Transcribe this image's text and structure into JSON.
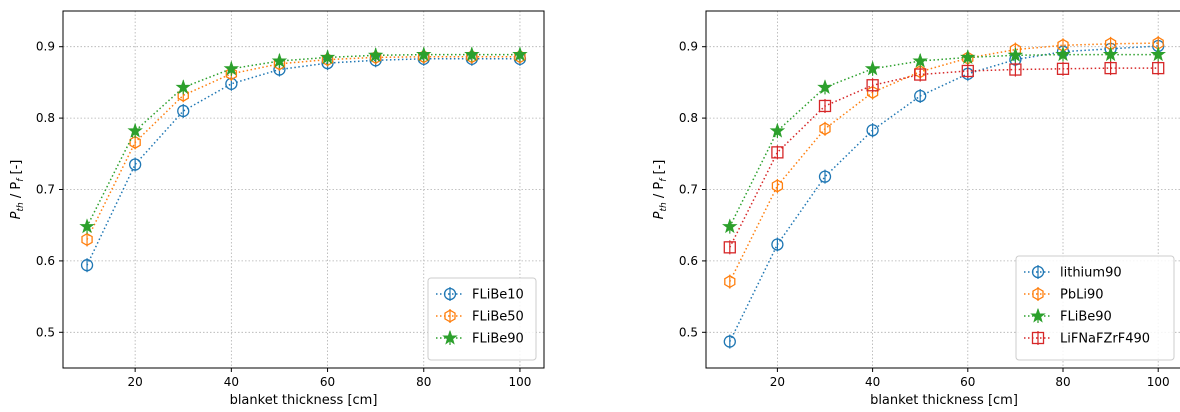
{
  "chart_data": [
    {
      "type": "line",
      "xlabel": "blanket thickness [cm]",
      "ylabel_main": "P",
      "ylabel_sub1": "th",
      "ylabel_mid": " / P",
      "ylabel_sub2": "f",
      "ylabel_tail": " [-]",
      "xlim": [
        5,
        105
      ],
      "ylim": [
        0.45,
        0.95
      ],
      "xticks": [
        20,
        40,
        60,
        80,
        100
      ],
      "xtick_labels": [
        "20",
        "40",
        "60",
        "80",
        "100"
      ],
      "yticks": [
        0.5,
        0.6,
        0.7,
        0.8,
        0.9
      ],
      "ytick_labels": [
        "0.5",
        "0.6",
        "0.7",
        "0.8",
        "0.9"
      ],
      "grid": true,
      "legend_position": "lower-right",
      "x": [
        10,
        20,
        30,
        40,
        50,
        60,
        70,
        80,
        90,
        100
      ],
      "series": [
        {
          "name": "FLiBe10",
          "color": "#1f77b4",
          "marker": "circle",
          "values": [
            0.594,
            0.735,
            0.81,
            0.848,
            0.868,
            0.877,
            0.881,
            0.883,
            0.883,
            0.883
          ]
        },
        {
          "name": "FLiBe50",
          "color": "#ff7f0e",
          "marker": "hexagon",
          "values": [
            0.63,
            0.766,
            0.832,
            0.862,
            0.876,
            0.882,
            0.885,
            0.886,
            0.886,
            0.886
          ]
        },
        {
          "name": "FLiBe90",
          "color": "#2ca02c",
          "marker": "star",
          "values": [
            0.648,
            0.782,
            0.843,
            0.869,
            0.88,
            0.885,
            0.888,
            0.889,
            0.889,
            0.889
          ]
        }
      ]
    },
    {
      "type": "line",
      "xlabel": "blanket thickness [cm]",
      "ylabel_main": "P",
      "ylabel_sub1": "th",
      "ylabel_mid": " / P",
      "ylabel_sub2": "f",
      "ylabel_tail": " [-]",
      "xlim": [
        5,
        105
      ],
      "ylim": [
        0.45,
        0.95
      ],
      "xticks": [
        20,
        40,
        60,
        80,
        100
      ],
      "xtick_labels": [
        "20",
        "40",
        "60",
        "80",
        "100"
      ],
      "yticks": [
        0.5,
        0.6,
        0.7,
        0.8,
        0.9
      ],
      "ytick_labels": [
        "0.5",
        "0.6",
        "0.7",
        "0.8",
        "0.9"
      ],
      "grid": true,
      "legend_position": "lower-right",
      "x": [
        10,
        20,
        30,
        40,
        50,
        60,
        70,
        80,
        90,
        100
      ],
      "series": [
        {
          "name": "lithium90",
          "color": "#1f77b4",
          "marker": "circle",
          "values": [
            0.487,
            0.623,
            0.718,
            0.783,
            0.831,
            0.862,
            0.882,
            0.893,
            0.897,
            0.901
          ]
        },
        {
          "name": "PbLi90",
          "color": "#ff7f0e",
          "marker": "hexagon",
          "values": [
            0.571,
            0.705,
            0.785,
            0.836,
            0.865,
            0.884,
            0.896,
            0.902,
            0.904,
            0.905
          ]
        },
        {
          "name": "FLiBe90",
          "color": "#2ca02c",
          "marker": "star",
          "values": [
            0.648,
            0.782,
            0.843,
            0.869,
            0.88,
            0.885,
            0.888,
            0.889,
            0.889,
            0.889
          ]
        },
        {
          "name": "LiFNaFZrF490",
          "color": "#d62728",
          "marker": "square",
          "values": [
            0.619,
            0.752,
            0.817,
            0.846,
            0.861,
            0.866,
            0.868,
            0.869,
            0.87,
            0.87
          ]
        }
      ]
    }
  ]
}
